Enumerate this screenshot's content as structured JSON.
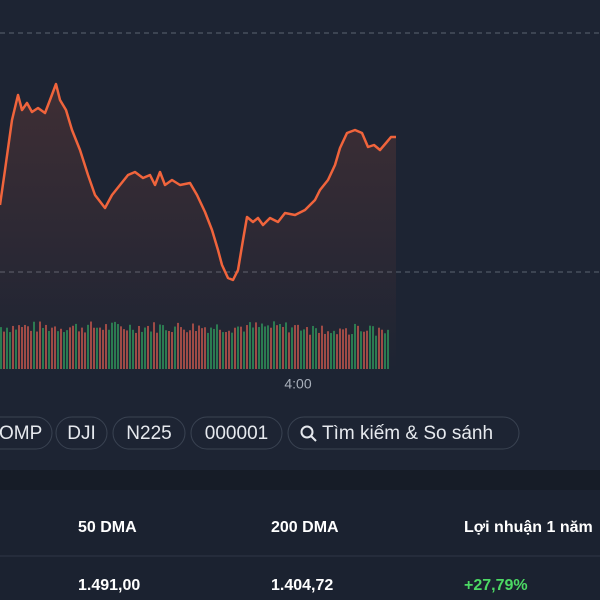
{
  "time_label": "4:00",
  "tabs": [
    "OMP",
    "DJI",
    "N225",
    "000001",
    "Tìm kiếm & So sánh"
  ],
  "table": {
    "headers": [
      "50 DMA",
      "200 DMA",
      "Lợi nhuận 1 năm"
    ],
    "rows": [
      [
        "1.491,00",
        "1.404,72",
        "+27,79%"
      ]
    ]
  }
}
